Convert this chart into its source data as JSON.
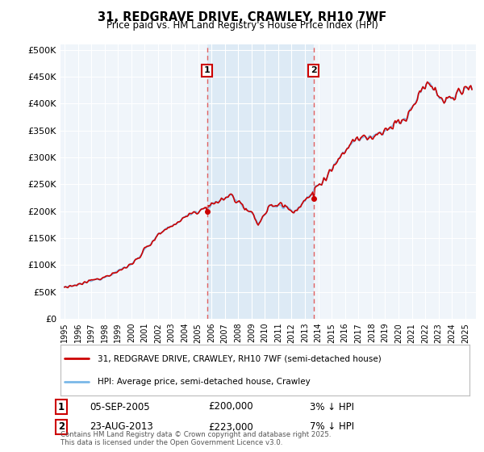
{
  "title": "31, REDGRAVE DRIVE, CRAWLEY, RH10 7WF",
  "subtitle": "Price paid vs. HM Land Registry's House Price Index (HPI)",
  "ylabel_values": [
    "£0",
    "£50K",
    "£100K",
    "£150K",
    "£200K",
    "£250K",
    "£300K",
    "£350K",
    "£400K",
    "£450K",
    "£500K"
  ],
  "yticks": [
    0,
    50000,
    100000,
    150000,
    200000,
    250000,
    300000,
    350000,
    400000,
    450000,
    500000
  ],
  "ylim": [
    0,
    510000
  ],
  "xlim_start": 1994.7,
  "xlim_end": 2025.8,
  "xticks": [
    1995,
    1996,
    1997,
    1998,
    1999,
    2000,
    2001,
    2002,
    2003,
    2004,
    2005,
    2006,
    2007,
    2008,
    2009,
    2010,
    2011,
    2012,
    2013,
    2014,
    2015,
    2016,
    2017,
    2018,
    2019,
    2020,
    2021,
    2022,
    2023,
    2024,
    2025
  ],
  "purchase1_x": 2005.68,
  "purchase1_y": 200000,
  "purchase1_label": "1",
  "purchase1_date": "05-SEP-2005",
  "purchase1_price": "£200,000",
  "purchase1_hpi": "3% ↓ HPI",
  "purchase2_x": 2013.64,
  "purchase2_y": 223000,
  "purchase2_label": "2",
  "purchase2_date": "23-AUG-2013",
  "purchase2_price": "£223,000",
  "purchase2_hpi": "7% ↓ HPI",
  "legend_line1": "31, REDGRAVE DRIVE, CRAWLEY, RH10 7WF (semi-detached house)",
  "legend_line2": "HPI: Average price, semi-detached house, Crawley",
  "footer": "Contains HM Land Registry data © Crown copyright and database right 2025.\nThis data is licensed under the Open Government Licence v3.0.",
  "hpi_color": "#7ab8e8",
  "price_color": "#cc0000",
  "vline_color": "#e06060",
  "background_color": "#f0f5fa",
  "span_color": "#ddeaf5",
  "plot_bg": "#ffffff",
  "grid_color": "#ffffff"
}
